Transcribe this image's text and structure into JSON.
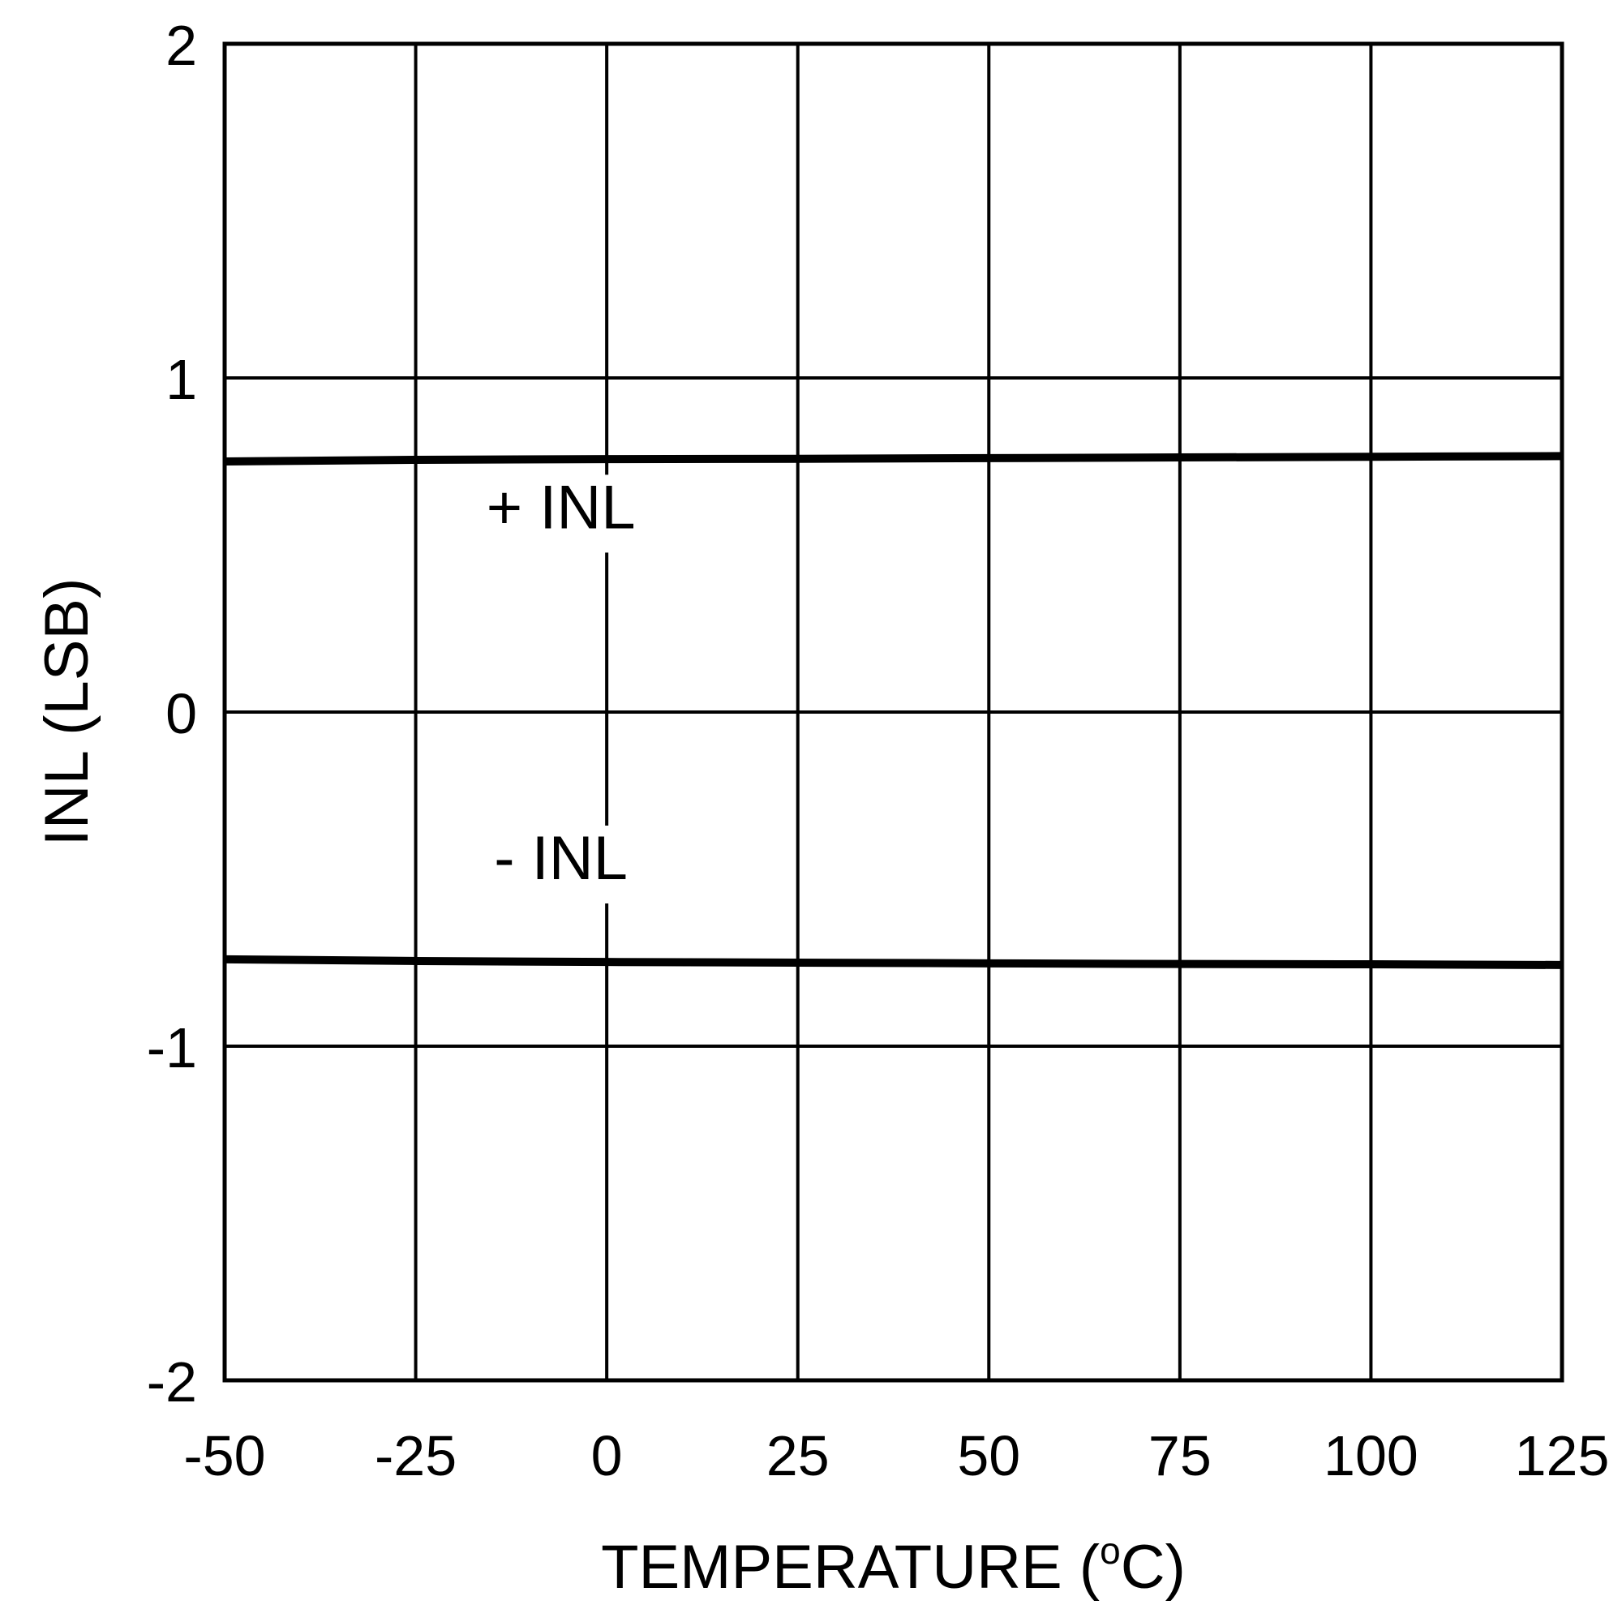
{
  "chart_data": {
    "type": "line",
    "title": "",
    "xlabel": "TEMPERATURE (",
    "xlabel_sup": "o",
    "xlabel_end": "C)",
    "ylabel": "INL (LSB)",
    "xlim": [
      -50,
      125
    ],
    "ylim": [
      -2,
      2
    ],
    "x_ticks": [
      -50,
      -25,
      0,
      25,
      50,
      75,
      100,
      125
    ],
    "y_ticks": [
      -2,
      -1,
      0,
      1,
      2
    ],
    "grid": true,
    "x": [
      -50,
      -25,
      0,
      25,
      50,
      75,
      100,
      125
    ],
    "series": [
      {
        "label": "+ INL",
        "label_at": [
          -6,
          0.55
        ],
        "values": [
          0.75,
          0.755,
          0.757,
          0.758,
          0.76,
          0.762,
          0.764,
          0.766
        ]
      },
      {
        "label": "- INL",
        "label_at": [
          -6,
          -0.5
        ],
        "values": [
          -0.74,
          -0.745,
          -0.748,
          -0.75,
          -0.752,
          -0.754,
          -0.755,
          -0.757
        ]
      }
    ],
    "colors": {
      "line": "#000000",
      "grid": "#000000",
      "background": "#ffffff"
    }
  }
}
